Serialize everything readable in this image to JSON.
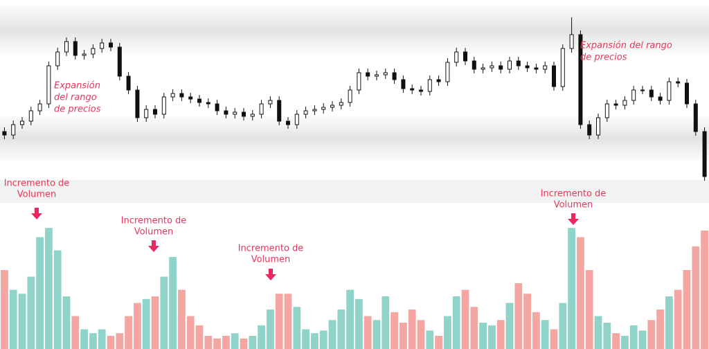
{
  "chart_data": {
    "type": "candlestick",
    "ylim": [
      0,
      300
    ],
    "up_color": "#ffffff",
    "down_color": "#111111",
    "open": [
      110,
      105,
      120,
      125,
      140,
      150,
      205,
      225,
      240,
      220,
      222,
      230,
      238,
      232,
      190,
      170,
      130,
      142,
      135,
      160,
      165,
      160,
      157,
      152,
      150,
      140,
      135,
      138,
      132,
      135,
      150,
      155,
      125,
      120,
      135,
      140,
      142,
      145,
      148,
      152,
      170,
      195,
      190,
      192,
      195,
      185,
      172,
      170,
      168,
      185,
      182,
      210,
      225,
      212,
      200,
      202,
      205,
      200,
      212,
      205,
      202,
      200,
      205,
      175,
      230,
      250,
      120,
      105,
      130,
      150,
      148,
      155,
      170,
      170,
      160,
      155,
      182,
      180,
      150,
      110
    ],
    "high": [
      116,
      126,
      131,
      146,
      156,
      211,
      231,
      246,
      246,
      228,
      236,
      244,
      244,
      238,
      196,
      176,
      148,
      148,
      166,
      171,
      171,
      166,
      163,
      158,
      156,
      146,
      144,
      144,
      141,
      156,
      161,
      161,
      131,
      141,
      146,
      148,
      151,
      154,
      158,
      176,
      201,
      201,
      198,
      201,
      201,
      191,
      178,
      176,
      191,
      191,
      216,
      231,
      231,
      218,
      208,
      211,
      211,
      218,
      218,
      211,
      208,
      211,
      211,
      236,
      275,
      256,
      126,
      136,
      156,
      156,
      161,
      176,
      176,
      176,
      166,
      188,
      188,
      186,
      156,
      116
    ],
    "low": [
      99,
      99,
      114,
      119,
      134,
      144,
      199,
      219,
      214,
      214,
      216,
      224,
      226,
      184,
      164,
      124,
      124,
      129,
      129,
      154,
      154,
      151,
      146,
      144,
      134,
      129,
      129,
      126,
      126,
      129,
      144,
      119,
      114,
      114,
      129,
      134,
      136,
      139,
      142,
      146,
      164,
      184,
      184,
      186,
      179,
      166,
      164,
      162,
      162,
      176,
      176,
      204,
      206,
      194,
      194,
      196,
      194,
      194,
      199,
      196,
      194,
      194,
      169,
      169,
      224,
      114,
      99,
      99,
      124,
      142,
      142,
      149,
      164,
      154,
      149,
      149,
      174,
      144,
      104,
      39
    ],
    "close": [
      105,
      120,
      125,
      140,
      150,
      205,
      225,
      240,
      220,
      222,
      230,
      238,
      232,
      190,
      170,
      130,
      142,
      135,
      160,
      165,
      160,
      157,
      152,
      150,
      140,
      135,
      138,
      132,
      135,
      150,
      155,
      125,
      120,
      135,
      140,
      142,
      145,
      148,
      152,
      170,
      195,
      190,
      192,
      195,
      185,
      172,
      170,
      168,
      185,
      182,
      210,
      225,
      212,
      200,
      202,
      205,
      200,
      212,
      205,
      202,
      200,
      205,
      175,
      230,
      250,
      120,
      105,
      130,
      150,
      148,
      155,
      170,
      170,
      160,
      155,
      182,
      180,
      150,
      110,
      45
    ],
    "volume": {
      "ylim": [
        0,
        100
      ],
      "up_color": "#8fd3c9",
      "down_color": "#f4a6a2",
      "values": [
        60,
        45,
        42,
        55,
        85,
        92,
        75,
        40,
        25,
        15,
        12,
        15,
        10,
        12,
        25,
        35,
        38,
        40,
        55,
        70,
        45,
        25,
        18,
        10,
        8,
        10,
        12,
        8,
        10,
        18,
        30,
        42,
        42,
        32,
        15,
        12,
        14,
        22,
        30,
        45,
        38,
        25,
        22,
        40,
        28,
        20,
        30,
        22,
        14,
        10,
        25,
        40,
        45,
        32,
        20,
        18,
        22,
        35,
        50,
        42,
        28,
        22,
        15,
        35,
        92,
        85,
        60,
        25,
        20,
        12,
        10,
        18,
        14,
        22,
        30,
        40,
        45,
        60,
        78,
        90
      ]
    },
    "annotations": [
      {
        "lines": [
          "Expansión",
          "del rango",
          "de precios"
        ]
      },
      {
        "lines": [
          "Expansión del rango",
          "de precios"
        ]
      },
      {
        "lines": [
          "Incremento de",
          "Volumen"
        ]
      },
      {
        "lines": [
          "Incremento de",
          "Volumen"
        ]
      },
      {
        "lines": [
          "Incremento de",
          "Volumen"
        ]
      },
      {
        "lines": [
          "Incremento de",
          "Volumen"
        ]
      }
    ]
  }
}
